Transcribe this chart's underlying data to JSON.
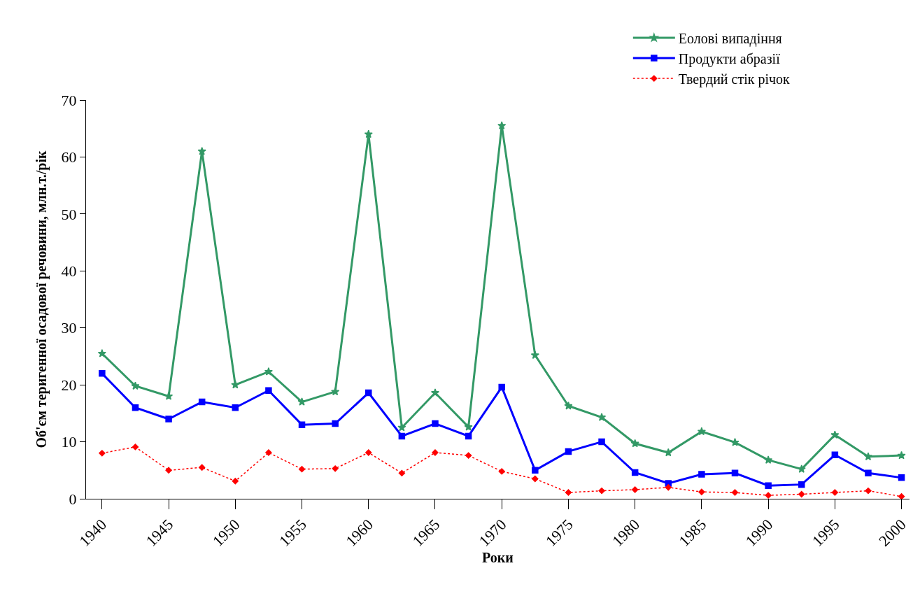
{
  "chart_data": {
    "type": "line",
    "xlabel": "Роки",
    "ylabel": "Об'єм теригенної осадової речовини, млн.т./рік",
    "x": [
      1940,
      1942.5,
      1945,
      1947.5,
      1950,
      1952.5,
      1955,
      1957.5,
      1960,
      1962.5,
      1965,
      1967.5,
      1970,
      1972.5,
      1975,
      1977.5,
      1980,
      1982.5,
      1985,
      1987.5,
      1990,
      1992.5,
      1995,
      1997.5,
      2000
    ],
    "series": [
      {
        "name": "Еолові випадіння",
        "color": "#339966",
        "marker": "star",
        "line_style": "solid",
        "values": [
          25.5,
          19.8,
          18,
          61,
          20,
          22.3,
          17,
          18.8,
          64,
          12.5,
          18.6,
          12.6,
          65.5,
          25.2,
          16.3,
          14.3,
          9.7,
          8.1,
          11.8,
          9.9,
          6.8,
          5.2,
          11.2,
          7.4,
          7.6
        ]
      },
      {
        "name": "Продукти абразії",
        "color": "#0000ff",
        "marker": "square",
        "line_style": "solid",
        "values": [
          22,
          16,
          14,
          17,
          16,
          19,
          13,
          13.2,
          18.6,
          11,
          13.2,
          11,
          19.6,
          5,
          8.3,
          10,
          4.6,
          2.7,
          4.3,
          4.5,
          2.3,
          2.5,
          7.7,
          4.5,
          3.7
        ]
      },
      {
        "name": "Твердий стік річок",
        "color": "#ff0000",
        "marker": "diamond",
        "line_style": "dotted",
        "values": [
          8,
          9.1,
          5,
          5.5,
          3.1,
          8.1,
          5.2,
          5.3,
          8.1,
          4.5,
          8.1,
          7.6,
          4.8,
          3.5,
          1.1,
          1.4,
          1.6,
          2,
          1.2,
          1.1,
          0.6,
          0.8,
          1.1,
          1.4,
          0.4
        ]
      }
    ],
    "xlim": [
      1938.8,
      2000.6
    ],
    "xticks": [
      1940,
      1945,
      1950,
      1955,
      1960,
      1965,
      1970,
      1975,
      1980,
      1985,
      1990,
      1995,
      2000
    ],
    "ylim": [
      0,
      70
    ],
    "yticks": [
      0,
      10,
      20,
      30,
      40,
      50,
      60,
      70
    ],
    "legend": "top right"
  }
}
